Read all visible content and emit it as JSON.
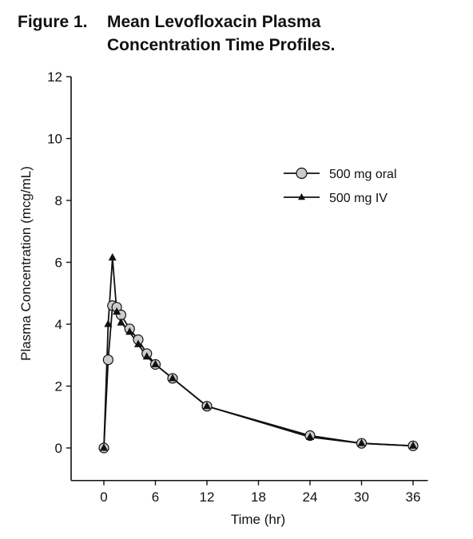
{
  "figure": {
    "number": "Figure 1.",
    "title_line1": "Mean Levofloxacin Plasma",
    "title_line2": "Concentration Time Profiles."
  },
  "chart_data": {
    "type": "line",
    "title": "Mean Levofloxacin Plasma Concentration Time Profiles.",
    "xlabel": "Time (hr)",
    "ylabel": "Plasma Concentration (mcg/mL)",
    "xlim": [
      -4,
      38
    ],
    "ylim": [
      -1,
      12
    ],
    "xticks": [
      0,
      6,
      12,
      18,
      24,
      30,
      36
    ],
    "yticks": [
      0,
      2,
      4,
      6,
      8,
      10,
      12
    ],
    "legend_position": "upper-right",
    "series": [
      {
        "name": "500 mg oral",
        "marker": "circle",
        "marker_fill": "#cccccc",
        "x": [
          0,
          0.5,
          1,
          1.5,
          2,
          3,
          4,
          5,
          6,
          8,
          12,
          24,
          30,
          36
        ],
        "y": [
          0,
          2.85,
          4.6,
          4.55,
          4.3,
          3.85,
          3.5,
          3.05,
          2.7,
          2.25,
          1.35,
          0.4,
          0.15,
          0.07
        ]
      },
      {
        "name": "500 mg IV",
        "marker": "triangle",
        "marker_fill": "#111111",
        "x": [
          0,
          0.5,
          1,
          1.5,
          2,
          3,
          4,
          5,
          6,
          8,
          12,
          24,
          30,
          36
        ],
        "y": [
          0,
          4.0,
          6.15,
          4.4,
          4.05,
          3.75,
          3.35,
          2.95,
          2.7,
          2.25,
          1.35,
          0.35,
          0.15,
          0.07
        ]
      }
    ]
  }
}
